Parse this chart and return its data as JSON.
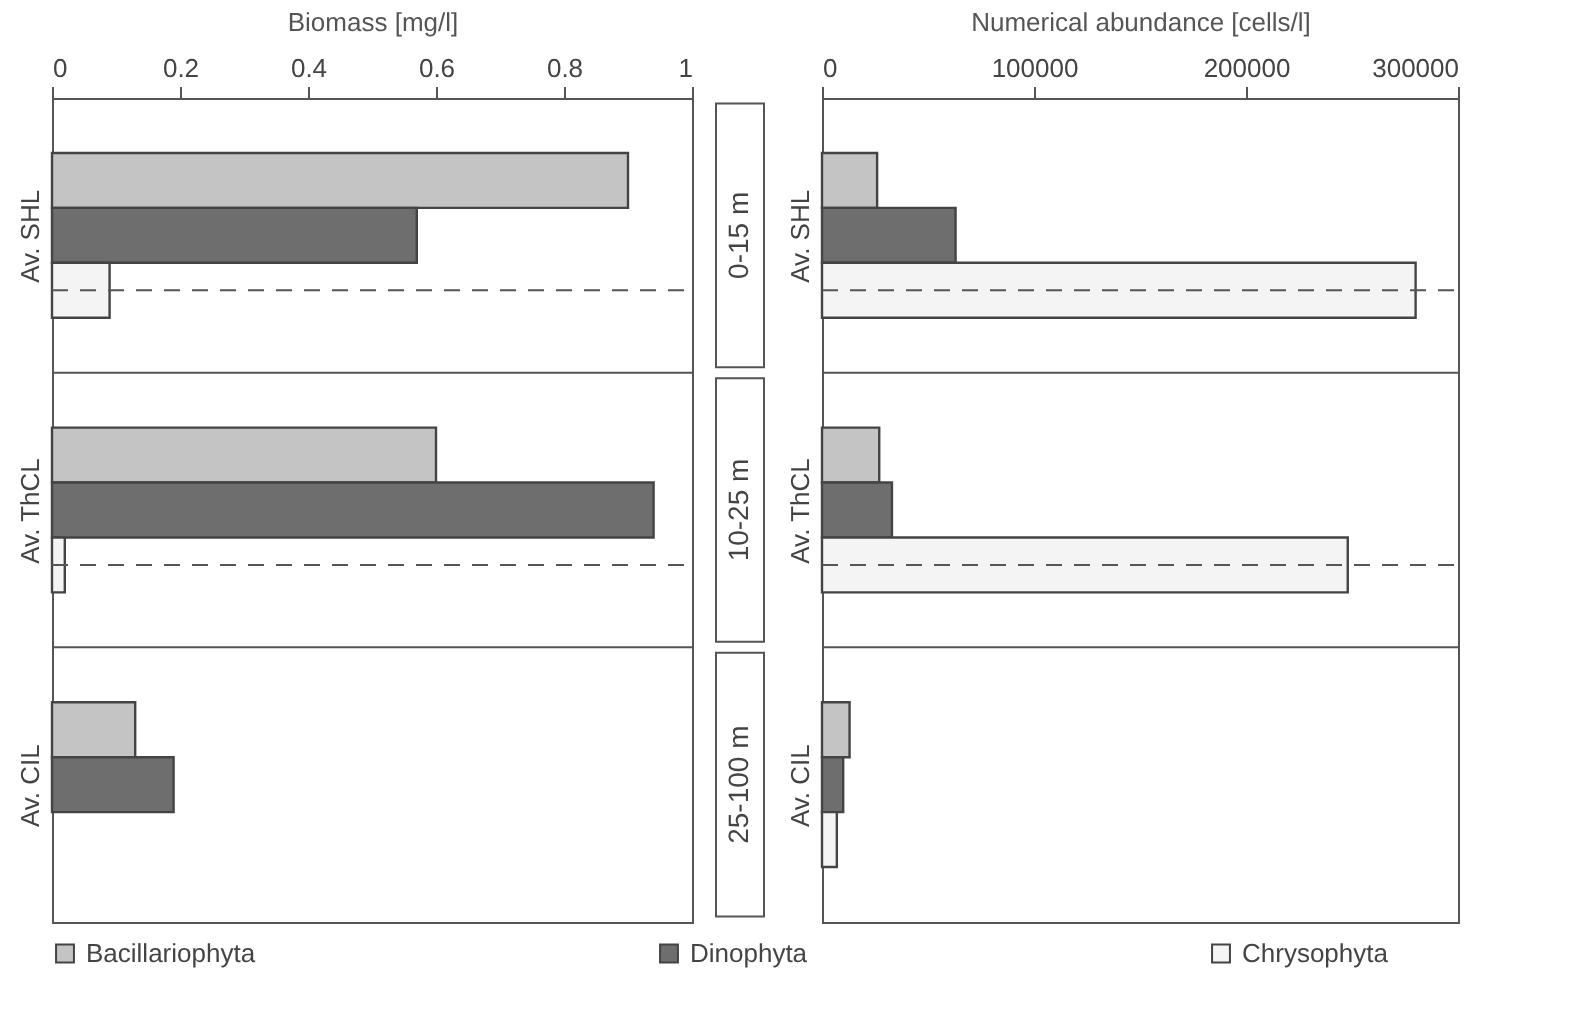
{
  "chart_data": [
    {
      "type": "bar",
      "orientation": "horizontal",
      "xlabel": "Biomass [mg/l]",
      "categories": [
        "Av. SHL",
        "Av. ThCL",
        "Av. CIL"
      ],
      "series": [
        {
          "name": "Bacillariophyta",
          "color": "#c4c4c4",
          "values": [
            0.9,
            0.6,
            0.13
          ]
        },
        {
          "name": "Dinophyta",
          "color": "#6e6e6e",
          "values": [
            0.57,
            0.94,
            0.19
          ]
        },
        {
          "name": "Chrysophyta",
          "color": "#f4f4f4",
          "values": [
            0.09,
            0.02,
            null
          ]
        }
      ],
      "xlim": [
        0,
        1
      ],
      "xticks": [
        0,
        0.2,
        0.4,
        0.6,
        0.8,
        1
      ],
      "grid": "y",
      "legend": "bottom",
      "ref_lines": [
        {
          "axis": "y",
          "value": "Av. SHL",
          "line_style": "dashed"
        },
        {
          "axis": "y",
          "value": "Av. ThCL",
          "line_style": "dashed"
        }
      ],
      "annotations": [
        "0-15 m",
        "10-25 m",
        "25-100 m"
      ]
    },
    {
      "type": "bar",
      "orientation": "horizontal",
      "xlabel": "Numerical abundance [cells/l]",
      "categories": [
        "Av. SHL",
        "Av. ThCL",
        "Av. CIL"
      ],
      "series": [
        {
          "name": "Bacillariophyta",
          "color": "#c4c4c4",
          "values": [
            26000,
            27000,
            13000
          ]
        },
        {
          "name": "Dinophyta",
          "color": "#6e6e6e",
          "values": [
            63000,
            33000,
            10000
          ]
        },
        {
          "name": "Chrysophyta",
          "color": "#f4f4f4",
          "values": [
            280000,
            248000,
            7000
          ]
        }
      ],
      "xlim": [
        0,
        300000
      ],
      "xticks": [
        0,
        100000,
        200000,
        300000
      ],
      "grid": "y",
      "legend": "bottom",
      "ref_lines": [
        {
          "axis": "y",
          "value": "Av. SHL",
          "line_style": "dashed"
        },
        {
          "axis": "y",
          "value": "Av. ThCL",
          "line_style": "dashed"
        }
      ]
    }
  ]
}
